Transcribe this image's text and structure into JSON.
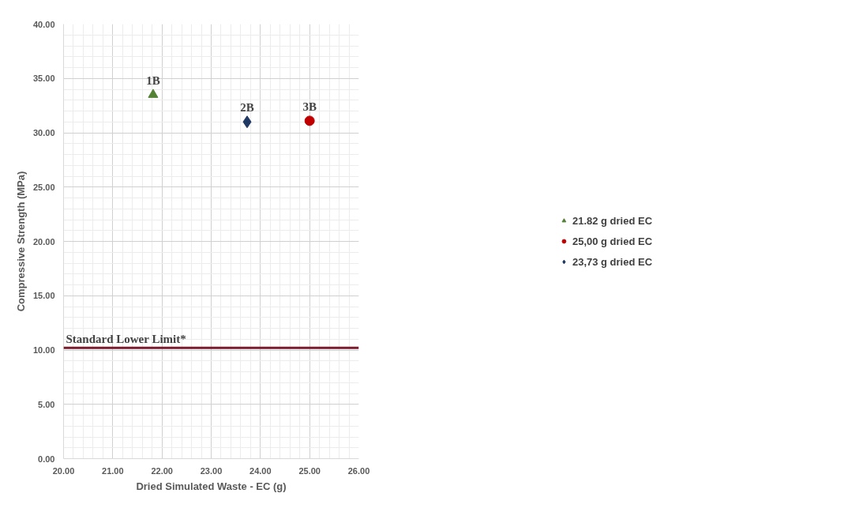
{
  "chart_data": {
    "type": "scatter",
    "xlabel": "Dried Simulated Waste - EC (g)",
    "ylabel": "Compressive Strength (MPa)",
    "xlim": [
      20,
      26
    ],
    "ylim": [
      0,
      40
    ],
    "xticks": [
      {
        "value": 20,
        "label": "20.00"
      },
      {
        "value": 21,
        "label": "21.00"
      },
      {
        "value": 22,
        "label": "22.00"
      },
      {
        "value": 23,
        "label": "23.00"
      },
      {
        "value": 24,
        "label": "24.00"
      },
      {
        "value": 25,
        "label": "25.00"
      },
      {
        "value": 26,
        "label": "26.00"
      }
    ],
    "yticks": [
      {
        "value": 0,
        "label": "0.00"
      },
      {
        "value": 5,
        "label": "5.00"
      },
      {
        "value": 10,
        "label": "10.00"
      },
      {
        "value": 15,
        "label": "15.00"
      },
      {
        "value": 20,
        "label": "20.00"
      },
      {
        "value": 25,
        "label": "25.00"
      },
      {
        "value": 30,
        "label": "30.00"
      },
      {
        "value": 35,
        "label": "35.00"
      },
      {
        "value": 40,
        "label": "40.00"
      }
    ],
    "grid": true,
    "legend": "right",
    "series": [
      {
        "name": "21.82 g dried EC",
        "color": "#548235",
        "marker": "triangle",
        "x": [
          21.82
        ],
        "values": [
          33.5
        ]
      },
      {
        "name": "25,00 g dried EC",
        "color": "#c00000",
        "marker": "circle",
        "x": [
          25.0
        ],
        "values": [
          31.1
        ]
      },
      {
        "name": "23,73 g dried EC",
        "color": "#1f3864",
        "marker": "diamond",
        "x": [
          23.73
        ],
        "values": [
          31.0
        ]
      }
    ],
    "annotations": [
      {
        "text": "1B",
        "x": 21.82,
        "y": 33.5
      },
      {
        "text": "2B",
        "x": 23.73,
        "y": 31.0
      },
      {
        "text": "3B",
        "x": 25.0,
        "y": 31.1
      }
    ],
    "ref_lines": [
      {
        "axis": "y",
        "value": 10.2,
        "label": "Standard Lower Limit*",
        "color": "#7b1c2e"
      }
    ]
  }
}
